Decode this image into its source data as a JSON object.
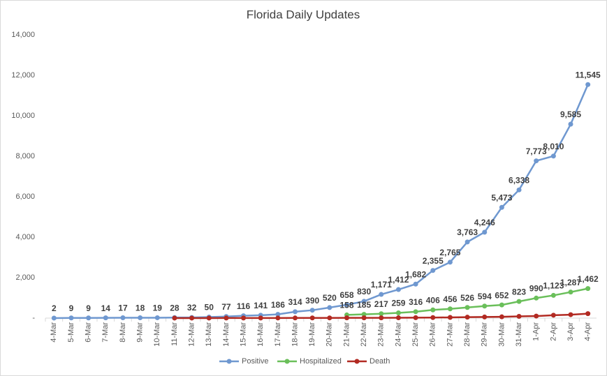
{
  "chart_data": {
    "type": "line",
    "title": "Florida Daily Updates",
    "categories": [
      "4-Mar",
      "5-Mar",
      "6-Mar",
      "7-Mar",
      "8-Mar",
      "9-Mar",
      "10-Mar",
      "11-Mar",
      "12-Mar",
      "13-Mar",
      "14-Mar",
      "15-Mar",
      "16-Mar",
      "17-Mar",
      "18-Mar",
      "19-Mar",
      "20-Mar",
      "21-Mar",
      "22-Mar",
      "23-Mar",
      "24-Mar",
      "25-Mar",
      "26-Mar",
      "27-Mar",
      "28-Mar",
      "29-Mar",
      "30-Mar",
      "31-Mar",
      "1-Apr",
      "2-Apr",
      "3-Apr",
      "4-Apr"
    ],
    "series": [
      {
        "name": "Positive",
        "color": "#6f98d0",
        "values": [
          2,
          9,
          9,
          14,
          17,
          18,
          19,
          28,
          32,
          50,
          77,
          116,
          141,
          186,
          314,
          390,
          520,
          658,
          830,
          1171,
          1412,
          1682,
          2355,
          2765,
          3763,
          4246,
          5473,
          6338,
          7773,
          8010,
          9585,
          11545
        ],
        "value_labels": [
          "2",
          "9",
          "9",
          "14",
          "17",
          "18",
          "19",
          "28",
          "32",
          "50",
          "77",
          "116",
          "141",
          "186",
          "314",
          "390",
          "520",
          "658",
          "830",
          "1,171",
          "1,412",
          "1,682",
          "2,355",
          "2,765",
          "3,763",
          "4,246",
          "5,473",
          "6,338",
          "7,773",
          "8,010",
          "9,585",
          "11,545"
        ]
      },
      {
        "name": "Hospitalized",
        "color": "#6abf5a",
        "values": [
          null,
          null,
          null,
          null,
          null,
          null,
          null,
          null,
          null,
          null,
          null,
          null,
          null,
          null,
          null,
          null,
          null,
          158,
          185,
          217,
          259,
          316,
          406,
          456,
          526,
          594,
          652,
          823,
          990,
          1123,
          1287,
          1462
        ],
        "value_labels": [
          null,
          null,
          null,
          null,
          null,
          null,
          null,
          null,
          null,
          null,
          null,
          null,
          null,
          null,
          null,
          null,
          null,
          "158",
          "185",
          "217",
          "259",
          "316",
          "406",
          "456",
          "526",
          "594",
          "652",
          "823",
          "990",
          "1,123",
          "1,287",
          "1,462"
        ]
      },
      {
        "name": "Death",
        "color": "#b22a22",
        "values": [
          null,
          null,
          null,
          null,
          null,
          null,
          null,
          2,
          2,
          2,
          3,
          4,
          5,
          6,
          7,
          8,
          10,
          12,
          13,
          14,
          18,
          22,
          28,
          35,
          46,
          56,
          63,
          85,
          101,
          144,
          170,
          221
        ]
      }
    ],
    "ylim": [
      0,
      14000
    ],
    "yticks": [
      {
        "value": 0,
        "label": "-"
      },
      {
        "value": 2000,
        "label": "2,000"
      },
      {
        "value": 4000,
        "label": "4,000"
      },
      {
        "value": 6000,
        "label": "6,000"
      },
      {
        "value": 8000,
        "label": "8,000"
      },
      {
        "value": 10000,
        "label": "10,000"
      },
      {
        "value": 12000,
        "label": "12,000"
      },
      {
        "value": 14000,
        "label": "14,000"
      }
    ],
    "legend": "bottom"
  }
}
